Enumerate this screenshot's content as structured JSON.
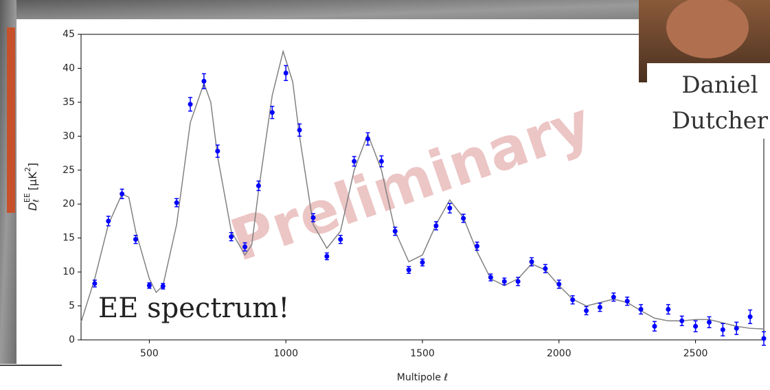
{
  "chart_data": {
    "type": "scatter",
    "xlabel": "Multipole ℓ",
    "ylabel": {
      "base": "D",
      "sub": "ℓ",
      "sup": "EE",
      "unit": "[μK",
      "unit_sup": "2",
      "close": "]"
    },
    "xlim": [
      250,
      2750
    ],
    "ylim": [
      0,
      45
    ],
    "xticks": [
      500,
      1000,
      1500,
      2000,
      2500
    ],
    "yticks": [
      0,
      5,
      10,
      15,
      20,
      25,
      30,
      35,
      40,
      45
    ],
    "grid": false,
    "annotations": [
      "Preliminary",
      "EE spectrum!"
    ],
    "photo_caption": [
      "Daniel",
      "Dutcher"
    ],
    "series": [
      {
        "type": "line",
        "color": "#808080",
        "x": [
          250,
          300,
          350,
          400,
          425,
          450,
          500,
          525,
          550,
          600,
          650,
          700,
          725,
          750,
          800,
          850,
          875,
          900,
          950,
          990,
          1025,
          1050,
          1100,
          1150,
          1200,
          1250,
          1300,
          1350,
          1400,
          1450,
          1500,
          1550,
          1600,
          1650,
          1700,
          1750,
          1800,
          1850,
          1900,
          1950,
          2000,
          2050,
          2100,
          2150,
          2200,
          2250,
          2300,
          2350,
          2400,
          2450,
          2500,
          2550,
          2600,
          2650,
          2700,
          2750
        ],
        "values": [
          2.6,
          9,
          17,
          21.5,
          21,
          16,
          9,
          7,
          8,
          17,
          32,
          37.8,
          35,
          27,
          16,
          12.5,
          14,
          22,
          36,
          42.5,
          38,
          30,
          17,
          13.5,
          16,
          25,
          30.3,
          25,
          16,
          11.5,
          12.5,
          17,
          20.6,
          18,
          13,
          9,
          8,
          9,
          11.2,
          10.3,
          8,
          6,
          5,
          5.5,
          6,
          5.5,
          4.3,
          3.2,
          2.8,
          2.8,
          3,
          3,
          2.5,
          2,
          1.7,
          1.6
        ]
      },
      {
        "type": "scatter",
        "color": "#0000ff",
        "x": [
          300,
          350,
          400,
          450,
          500,
          550,
          600,
          650,
          700,
          750,
          800,
          850,
          900,
          950,
          1000,
          1050,
          1100,
          1150,
          1200,
          1250,
          1300,
          1350,
          1400,
          1450,
          1500,
          1550,
          1600,
          1650,
          1700,
          1750,
          1800,
          1850,
          1900,
          1950,
          2000,
          2050,
          2100,
          2150,
          2200,
          2250,
          2300,
          2350,
          2400,
          2450,
          2500,
          2550,
          2600,
          2650,
          2700,
          2750
        ],
        "values": [
          8.3,
          17.5,
          21.5,
          14.8,
          8.0,
          7.9,
          20.2,
          34.7,
          38.1,
          27.8,
          15.2,
          13.7,
          22.7,
          33.5,
          39.3,
          30.9,
          18.0,
          12.3,
          14.8,
          26.3,
          29.6,
          26.3,
          16.0,
          10.3,
          11.4,
          16.8,
          19.4,
          17.9,
          13.8,
          9.2,
          8.6,
          8.6,
          11.5,
          10.5,
          8.2,
          5.9,
          4.3,
          4.8,
          6.3,
          5.7,
          4.5,
          2.0,
          4.5,
          2.8,
          2.0,
          2.6,
          1.5,
          1.7,
          3.4,
          0.2
        ],
        "errors": [
          0.5,
          0.7,
          0.7,
          0.6,
          0.4,
          0.4,
          0.6,
          1.0,
          1.1,
          0.9,
          0.6,
          0.6,
          0.7,
          0.9,
          1.1,
          0.9,
          0.6,
          0.5,
          0.6,
          0.7,
          0.9,
          0.8,
          0.6,
          0.5,
          0.5,
          0.6,
          0.7,
          0.6,
          0.6,
          0.5,
          0.5,
          0.6,
          0.6,
          0.6,
          0.6,
          0.6,
          0.6,
          0.6,
          0.6,
          0.6,
          0.7,
          0.7,
          0.7,
          0.7,
          0.8,
          0.8,
          0.9,
          0.9,
          1.0,
          1.0
        ]
      }
    ]
  }
}
